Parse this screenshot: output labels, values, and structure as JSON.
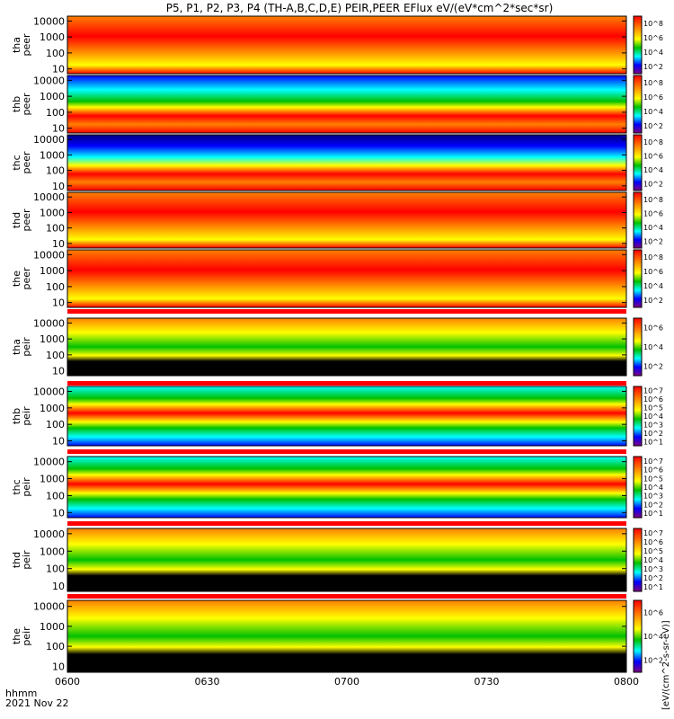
{
  "title": "P5, P1, P2, P3, P4 (TH-A,B,C,D,E) PEIR,PEER EFlux eV/(eV*cm^2*sec*sr)",
  "colorbar_unit_label": "[eV/(cm^2-s-sr-eV)]",
  "colorbar_side_text": "eV/(cm^2-sec-sr-eV)",
  "time_axis": {
    "corner_label": "hhmm",
    "date": "2021 Nov 22",
    "ticks": [
      "0600",
      "0630",
      "0700",
      "0730",
      "0800"
    ],
    "range": [
      "0600",
      "0800"
    ]
  },
  "y_ticks": [
    "10000",
    "1000",
    "100",
    "10"
  ],
  "chart_data": [
    {
      "type": "heatmap",
      "probe": "tha",
      "species": "peer",
      "ylabel": [
        "tha",
        "peer"
      ],
      "y_scale": "log",
      "ylim": [
        5,
        20000
      ],
      "colorbar_scale": "log",
      "colorbar_ticks": [
        "10^2",
        "10^4",
        "10^6",
        "10^8"
      ],
      "has_mode_bar": false
    },
    {
      "type": "heatmap",
      "probe": "thb",
      "species": "peer",
      "ylabel": [
        "thb",
        "peer"
      ],
      "y_scale": "log",
      "ylim": [
        5,
        20000
      ],
      "colorbar_scale": "log",
      "colorbar_ticks": [
        "10^2",
        "10^4",
        "10^6",
        "10^8"
      ],
      "has_mode_bar": false
    },
    {
      "type": "heatmap",
      "probe": "thc",
      "species": "peer",
      "ylabel": [
        "thc",
        "peer"
      ],
      "y_scale": "log",
      "ylim": [
        5,
        20000
      ],
      "colorbar_scale": "log",
      "colorbar_ticks": [
        "10^2",
        "10^4",
        "10^6",
        "10^8"
      ],
      "has_mode_bar": false
    },
    {
      "type": "heatmap",
      "probe": "thd",
      "species": "peer",
      "ylabel": [
        "thd",
        "peer"
      ],
      "y_scale": "log",
      "ylim": [
        5,
        20000
      ],
      "colorbar_scale": "log",
      "colorbar_ticks": [
        "10^2",
        "10^4",
        "10^6",
        "10^8"
      ],
      "has_mode_bar": false
    },
    {
      "type": "heatmap",
      "probe": "the",
      "species": "peer",
      "ylabel": [
        "the",
        "peer"
      ],
      "y_scale": "log",
      "ylim": [
        5,
        20000
      ],
      "colorbar_scale": "log",
      "colorbar_ticks": [
        "10^2",
        "10^4",
        "10^6",
        "10^8"
      ],
      "has_mode_bar": true
    },
    {
      "type": "heatmap",
      "probe": "tha",
      "species": "peir",
      "ylabel": [
        "tha",
        "peir"
      ],
      "y_scale": "log",
      "ylim": [
        5,
        20000
      ],
      "colorbar_scale": "log",
      "colorbar_ticks": [
        "10^2",
        "10^4",
        "10^6"
      ],
      "has_mode_bar": true
    },
    {
      "type": "heatmap",
      "probe": "thb",
      "species": "peir",
      "ylabel": [
        "thb",
        "peir"
      ],
      "y_scale": "log",
      "ylim": [
        5,
        20000
      ],
      "colorbar_scale": "log",
      "colorbar_ticks": [
        "10^1",
        "10^2",
        "10^3",
        "10^4",
        "10^5",
        "10^6",
        "10^7"
      ],
      "has_mode_bar": true
    },
    {
      "type": "heatmap",
      "probe": "thc",
      "species": "peir",
      "ylabel": [
        "thc",
        "peir"
      ],
      "y_scale": "log",
      "ylim": [
        5,
        20000
      ],
      "colorbar_scale": "log",
      "colorbar_ticks": [
        "10^1",
        "10^2",
        "10^3",
        "10^4",
        "10^5",
        "10^6",
        "10^7"
      ],
      "has_mode_bar": true
    },
    {
      "type": "heatmap",
      "probe": "thd",
      "species": "peir",
      "ylabel": [
        "thd",
        "peir"
      ],
      "y_scale": "log",
      "ylim": [
        5,
        20000
      ],
      "colorbar_scale": "log",
      "colorbar_ticks": [
        "10^1",
        "10^2",
        "10^3",
        "10^4",
        "10^5",
        "10^6",
        "10^7"
      ],
      "has_mode_bar": true
    },
    {
      "type": "heatmap",
      "probe": "the",
      "species": "peir",
      "ylabel": [
        "the",
        "peir"
      ],
      "y_scale": "log",
      "ylim": [
        5,
        20000
      ],
      "colorbar_scale": "log",
      "colorbar_ticks": [
        "10^2",
        "10^4",
        "10^6"
      ],
      "has_mode_bar": false
    }
  ],
  "palette": {
    "black": "#000000",
    "red": "#ff0000",
    "orange": "#ff8000",
    "yellow": "#ffff00",
    "green": "#00c000",
    "cyan": "#00ffff",
    "blue": "#0000ff",
    "navy": "#000080",
    "purple": "#800080"
  }
}
